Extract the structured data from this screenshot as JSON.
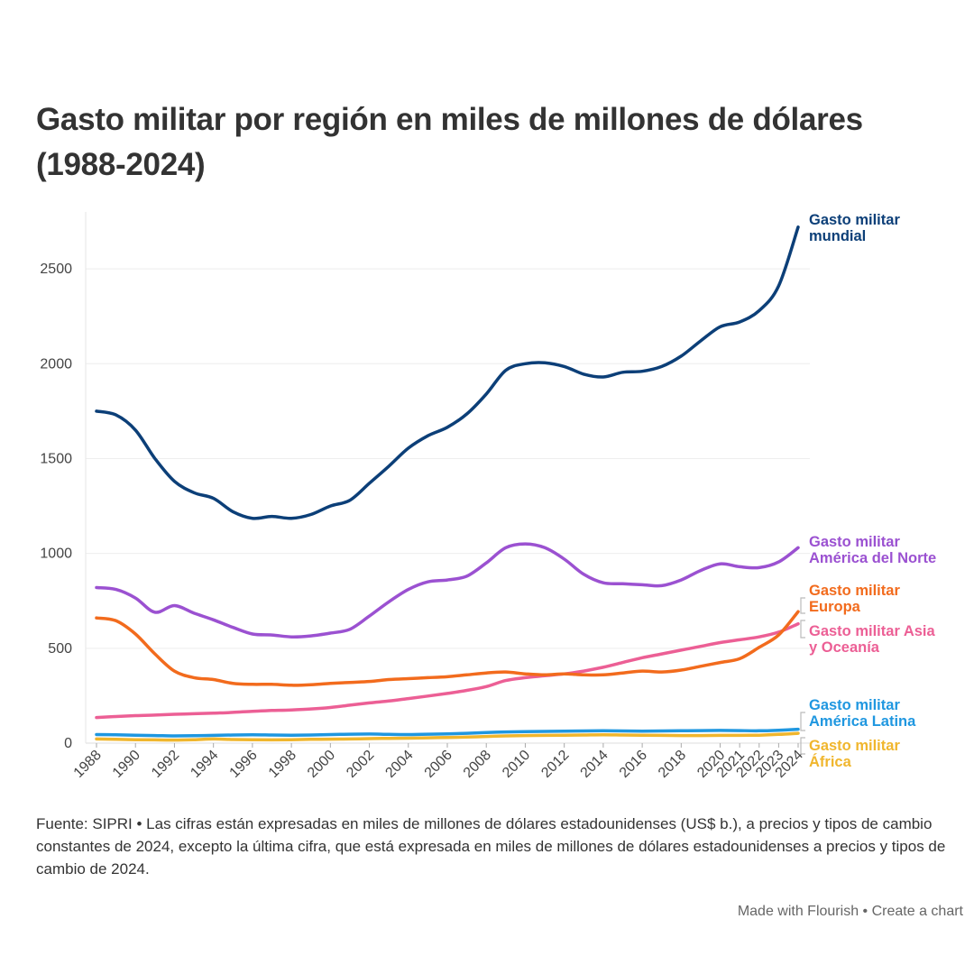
{
  "chart_data": {
    "type": "line",
    "title": "Gasto militar por región en miles de millones de dólares (1988-2024)",
    "x": [
      1988,
      1989,
      1990,
      1991,
      1992,
      1993,
      1994,
      1995,
      1996,
      1997,
      1998,
      1999,
      2000,
      2001,
      2002,
      2003,
      2004,
      2005,
      2006,
      2007,
      2008,
      2009,
      2010,
      2011,
      2012,
      2013,
      2014,
      2015,
      2016,
      2017,
      2018,
      2019,
      2020,
      2021,
      2022,
      2023,
      2024
    ],
    "x_ticks": [
      "1988",
      "1990",
      "1992",
      "1994",
      "1996",
      "1998",
      "2000",
      "2002",
      "2004",
      "2006",
      "2008",
      "2010",
      "2012",
      "2014",
      "2016",
      "2018",
      "2020",
      "2021",
      "2022",
      "2023",
      "2024"
    ],
    "y_ticks": [
      "0",
      "500",
      "1000",
      "1500",
      "2000",
      "2500"
    ],
    "ylim": [
      0,
      2800
    ],
    "grid": "horizontal",
    "legend": "direct labels at line ends (right)",
    "series": [
      {
        "name": "Gasto militar mundial",
        "label_lines": [
          "Gasto militar",
          "mundial"
        ],
        "color": "#0c3f78",
        "values": [
          1750,
          1730,
          1650,
          1500,
          1380,
          1320,
          1290,
          1220,
          1185,
          1195,
          1185,
          1205,
          1250,
          1280,
          1370,
          1460,
          1555,
          1620,
          1665,
          1735,
          1840,
          1965,
          2000,
          2005,
          1985,
          1945,
          1930,
          1955,
          1960,
          1985,
          2040,
          2120,
          2195,
          2220,
          2280,
          2410,
          2720
        ]
      },
      {
        "name": "Gasto militar América del Norte",
        "label_lines": [
          "Gasto militar",
          "América del Norte"
        ],
        "color": "#9b51d1",
        "values": [
          820,
          810,
          765,
          690,
          725,
          685,
          650,
          610,
          575,
          570,
          560,
          565,
          580,
          600,
          670,
          745,
          810,
          850,
          860,
          880,
          950,
          1030,
          1050,
          1030,
          970,
          890,
          845,
          840,
          835,
          830,
          860,
          910,
          945,
          930,
          925,
          955,
          1030
        ]
      },
      {
        "name": "Gasto militar Europa",
        "label_lines": [
          "Gasto militar",
          "Europa"
        ],
        "color": "#f26b1d",
        "values": [
          660,
          645,
          575,
          470,
          380,
          345,
          335,
          315,
          310,
          310,
          305,
          308,
          315,
          320,
          325,
          335,
          340,
          345,
          350,
          360,
          370,
          375,
          365,
          360,
          365,
          360,
          360,
          370,
          380,
          375,
          385,
          405,
          425,
          445,
          505,
          570,
          693
        ]
      },
      {
        "name": "Gasto militar Asia y Oceanía",
        "label_lines": [
          "Gasto militar Asia",
          "y Oceanía"
        ],
        "color": "#ec5f95",
        "values": [
          135,
          140,
          145,
          148,
          152,
          155,
          158,
          162,
          168,
          172,
          175,
          180,
          188,
          200,
          212,
          222,
          235,
          248,
          262,
          278,
          298,
          330,
          345,
          355,
          365,
          380,
          400,
          425,
          450,
          470,
          490,
          510,
          530,
          545,
          560,
          585,
          629
        ]
      },
      {
        "name": "Gasto militar América Latina",
        "label_lines": [
          "Gasto militar",
          "América Latina"
        ],
        "color": "#1f97e0",
        "values": [
          45,
          44,
          42,
          40,
          38,
          39,
          41,
          43,
          44,
          43,
          42,
          43,
          45,
          47,
          48,
          46,
          45,
          47,
          49,
          52,
          56,
          59,
          61,
          62,
          63,
          64,
          65,
          64,
          63,
          64,
          65,
          66,
          67,
          66,
          65,
          68,
          73
        ]
      },
      {
        "name": "Gasto militar África",
        "label_lines": [
          "Gasto militar",
          "África"
        ],
        "color": "#f0b62d",
        "values": [
          22,
          20,
          18,
          17,
          16,
          18,
          22,
          19,
          18,
          17,
          18,
          20,
          21,
          22,
          24,
          25,
          26,
          28,
          30,
          32,
          35,
          38,
          40,
          41,
          42,
          43,
          44,
          43,
          42,
          41,
          40,
          40,
          41,
          41,
          42,
          46,
          52
        ]
      }
    ]
  },
  "footnote": "Fuente: SIPRI • Las cifras están expresadas en miles de millones de dólares estadounidenses (US$ b.), a precios y tipos de cambio constantes de 2024, excepto la última cifra, que está expresada en miles de millones de dólares estadounidenses a precios y tipos de cambio de 2024.",
  "credit": {
    "made_with": "Made with Flourish",
    "separator": "•",
    "create": "Create a chart"
  }
}
